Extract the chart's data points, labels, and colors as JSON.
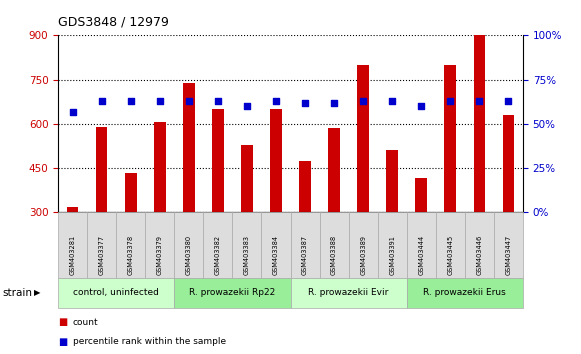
{
  "title": "GDS3848 / 12979",
  "samples": [
    "GSM403281",
    "GSM403377",
    "GSM403378",
    "GSM403379",
    "GSM403380",
    "GSM403382",
    "GSM403383",
    "GSM403384",
    "GSM403387",
    "GSM403388",
    "GSM403389",
    "GSM403391",
    "GSM403444",
    "GSM403445",
    "GSM403446",
    "GSM403447"
  ],
  "counts": [
    320,
    590,
    435,
    605,
    740,
    650,
    530,
    650,
    475,
    585,
    800,
    510,
    415,
    800,
    900,
    630
  ],
  "percentiles": [
    57,
    63,
    63,
    63,
    63,
    63,
    60,
    63,
    62,
    62,
    63,
    63,
    60,
    63,
    63,
    63
  ],
  "groups": [
    {
      "label": "control, uninfected",
      "start": 0,
      "end": 3,
      "color": "#ccffcc"
    },
    {
      "label": "R. prowazekii Rp22",
      "start": 4,
      "end": 7,
      "color": "#99ee99"
    },
    {
      "label": "R. prowazekii Evir",
      "start": 8,
      "end": 11,
      "color": "#ccffcc"
    },
    {
      "label": "R. prowazekii Erus",
      "start": 12,
      "end": 15,
      "color": "#99ee99"
    }
  ],
  "ylim_left": [
    300,
    900
  ],
  "ylim_right": [
    0,
    100
  ],
  "yticks_left": [
    300,
    450,
    600,
    750,
    900
  ],
  "yticks_right": [
    0,
    25,
    50,
    75,
    100
  ],
  "bar_color": "#cc0000",
  "dot_color": "#0000cc",
  "bg_color": "#ffffff",
  "plot_bg": "#ffffff",
  "tick_label_color_left": "#cc0000",
  "tick_label_color_right": "#0000cc",
  "label_count": "count",
  "label_percentile": "percentile rank within the sample",
  "strain_label": "strain"
}
